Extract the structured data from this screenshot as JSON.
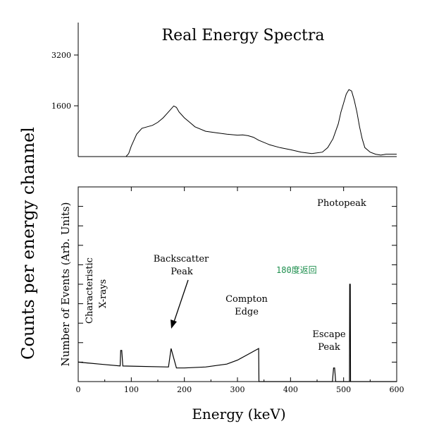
{
  "chart_data": [
    {
      "type": "line",
      "title": "Real Energy Spectra",
      "ylabel_shared": "Counts per energy channel",
      "yticks": [
        "1600",
        "3200"
      ],
      "ylim": [
        0,
        4500
      ],
      "xlim": [
        0,
        600
      ],
      "grid": false,
      "series": [
        {
          "x": [
            85,
            90,
            95,
            100,
            110,
            120,
            130,
            140,
            150,
            160,
            170,
            180,
            185,
            190,
            200,
            210,
            220,
            240,
            260,
            280,
            300,
            310,
            320,
            330,
            340,
            360,
            380,
            400,
            420,
            440,
            460,
            470,
            480,
            490,
            495,
            500,
            505,
            510,
            515,
            520,
            525,
            530,
            535,
            540,
            550,
            560,
            570,
            580,
            600
          ],
          "y": [
            0,
            0,
            100,
            350,
            750,
            950,
            1000,
            1050,
            1150,
            1300,
            1500,
            1700,
            1650,
            1500,
            1300,
            1150,
            1000,
            850,
            800,
            750,
            720,
            730,
            700,
            650,
            550,
            400,
            300,
            230,
            150,
            100,
            150,
            300,
            600,
            1100,
            1500,
            1800,
            2100,
            2250,
            2200,
            1900,
            1500,
            1000,
            600,
            300,
            150,
            80,
            50,
            80,
            80
          ]
        }
      ]
    },
    {
      "type": "line",
      "xlabel": "Energy (keV)",
      "ylabel": "Number of Events (Arb. Units)",
      "xlim": [
        0,
        600
      ],
      "xticks": [
        0,
        100,
        200,
        300,
        400,
        500,
        600
      ],
      "ylim": [
        0,
        10
      ],
      "grid": false,
      "series": [
        {
          "x": [
            0,
            40,
            79,
            80,
            82,
            84,
            170,
            175,
            185,
            200,
            240,
            280,
            300,
            320,
            340,
            340.5,
            479,
            481,
            483,
            485,
            511,
            511.5,
            512.5,
            513,
            600
          ],
          "y": [
            1.0,
            0.9,
            0.8,
            1.6,
            1.6,
            0.8,
            0.75,
            1.7,
            0.7,
            0.7,
            0.75,
            0.9,
            1.1,
            1.4,
            1.7,
            0,
            0,
            0.7,
            0.7,
            0,
            0,
            5.0,
            5.0,
            0,
            0
          ]
        }
      ],
      "annotations": {
        "characteristic": "Characteristic",
        "xrays": "X-rays",
        "backscatter": "Backscatter",
        "backscatter_peak": "Peak",
        "compton": "Compton",
        "compton_edge": "Edge",
        "escape": "Escape",
        "escape_peak": "Peak",
        "photopeak": "Photopeak",
        "overlay": "180度返回"
      }
    }
  ]
}
